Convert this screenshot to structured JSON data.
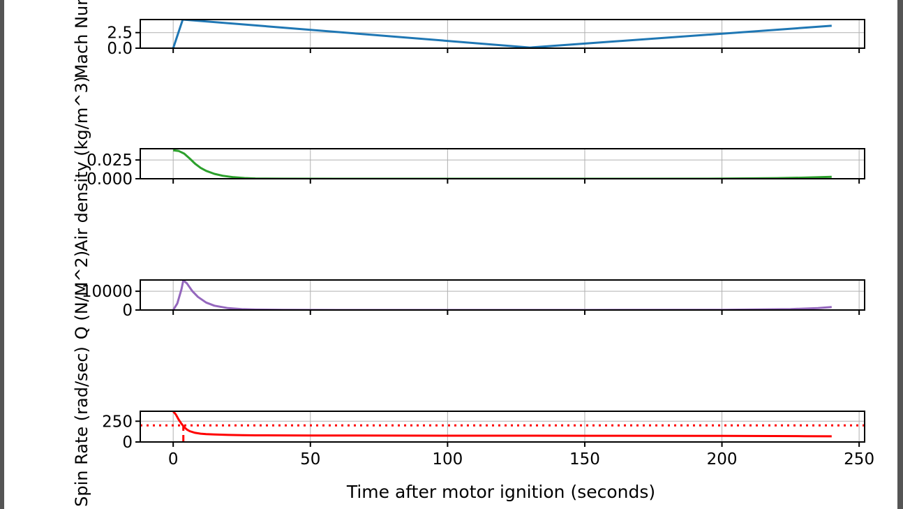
{
  "xlabel": "Time after motor ignition (seconds)",
  "x_ticks": [
    0,
    50,
    100,
    150,
    200,
    250
  ],
  "x_range": [
    -12,
    252
  ],
  "colors": {
    "mach": "#1f77b4",
    "density": "#2ca02c",
    "q": "#9467bd",
    "spin": "#ff0000",
    "frame": "#444444",
    "grid": "#b0b0b0"
  },
  "chart_data": [
    {
      "type": "line",
      "ylabel": "Mach Num",
      "ylim": [
        0,
        4.6
      ],
      "y_ticks": [
        0.0,
        2.5
      ],
      "y_tick_labels": [
        "0.0",
        "2.5"
      ],
      "grid": true,
      "series": [
        {
          "color": "#1f77b4",
          "x": [
            0,
            3.5,
            130,
            240
          ],
          "y": [
            0.0,
            4.6,
            0.1,
            3.6
          ]
        }
      ]
    },
    {
      "type": "line",
      "ylabel": "Air density (kg/m^3)",
      "ylim": [
        0,
        0.04
      ],
      "y_ticks": [
        0.0,
        0.025
      ],
      "y_tick_labels": [
        "0.000",
        "0.025"
      ],
      "grid": true,
      "series": [
        {
          "color": "#2ca02c",
          "x": [
            0,
            2,
            4,
            6,
            8,
            10,
            12,
            15,
            18,
            22,
            26,
            30,
            40,
            60,
            100,
            150,
            200,
            220,
            230,
            240
          ],
          "y": [
            0.038,
            0.037,
            0.0335,
            0.027,
            0.02,
            0.0145,
            0.0105,
            0.0065,
            0.004,
            0.002,
            0.0009,
            0.0004,
            0.0001,
            0.0,
            0.0,
            0.0,
            0.0002,
            0.0008,
            0.0015,
            0.0025
          ]
        }
      ]
    },
    {
      "type": "line",
      "ylabel": "Q (N/M^2)",
      "ylim": [
        0,
        16000
      ],
      "y_ticks": [
        0,
        10000
      ],
      "y_tick_labels": [
        "0",
        "10000"
      ],
      "grid": true,
      "series": [
        {
          "color": "#9467bd",
          "x": [
            0,
            1.5,
            3,
            3.7,
            5,
            7,
            9,
            12,
            15,
            20,
            25,
            30,
            40,
            60,
            100,
            150,
            200,
            225,
            235,
            240
          ],
          "y": [
            0,
            3500,
            11000,
            15800,
            14200,
            10000,
            7000,
            4000,
            2300,
            1000,
            450,
            220,
            60,
            0,
            0,
            0,
            100,
            500,
            1000,
            1600
          ]
        }
      ]
    },
    {
      "type": "line",
      "ylabel": "Spin Rate (rad/sec)",
      "ylim": [
        0,
        370
      ],
      "y_ticks": [
        0,
        250
      ],
      "y_tick_labels": [
        "0",
        "250"
      ],
      "grid": true,
      "series": [
        {
          "color": "#ff0000",
          "x": [
            0,
            1,
            2,
            3,
            4,
            5,
            6,
            8,
            10,
            12,
            15,
            20,
            25,
            30,
            50,
            100,
            150,
            200,
            230,
            240
          ],
          "y": [
            370,
            330,
            270,
            220,
            180,
            150,
            130,
            110,
            100,
            95,
            90,
            85,
            82,
            80,
            78,
            76,
            75,
            73,
            70,
            68
          ]
        }
      ],
      "hline": {
        "y": 200,
        "style": "dotted",
        "color": "#ff0000"
      },
      "vline": {
        "x": 3.7,
        "y0": 0,
        "y1": 200,
        "style": "dashed",
        "color": "#ff0000"
      }
    }
  ]
}
